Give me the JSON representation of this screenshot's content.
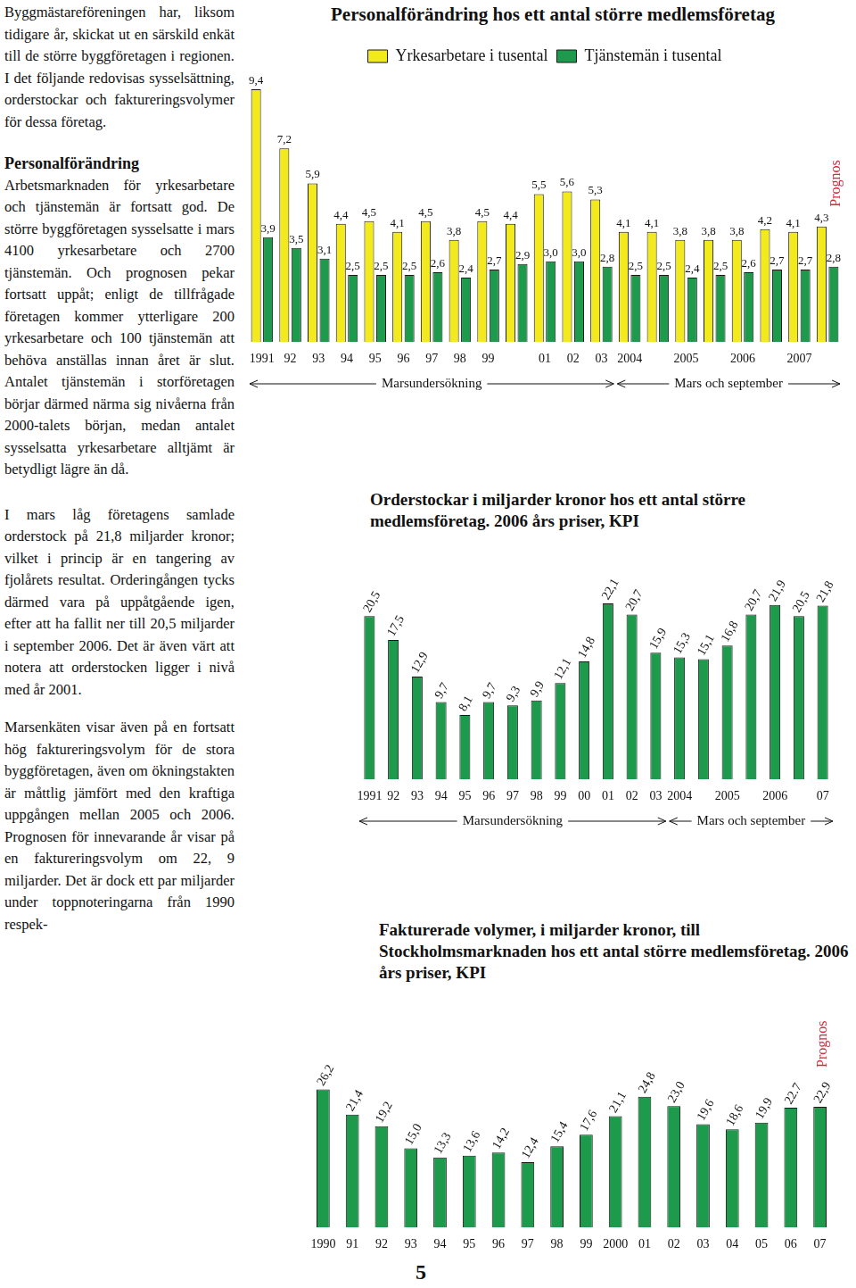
{
  "text": {
    "intro": "Byggmästareföreningen har, liksom tidigare år, skickat ut en särskild enkät till de större byggföretagen i regionen. I det följande redovisas sysselsättning, orderstockar och faktureringsvolymer för dessa företag.",
    "heading": "Personalförändring",
    "p1": "Arbetsmarknaden för yrkesarbetare och tjänstemän är fortsatt god. De större byggföretagen sysselsatte i mars 4100 yrkesarbetare och 2700 tjänstemän. Och prognosen pekar fortsatt uppåt; enligt de tillfrågade företagen kommer ytterligare 200 yrkesarbetare och 100 tjänstemän att behöva anställas innan året är slut. Antalet tjänstemän i storföretagen börjar därmed närma sig nivåerna från 2000-talets början, medan antalet sysselsatta yrkesarbetare alltjämt är betydligt lägre än då.",
    "p2": "I mars låg företagens samlade orderstock på 21,8 miljarder kronor; vilket i princip är en tangering av fjolårets resultat. Orderingången tycks därmed vara på uppåtgående igen, efter att ha fallit ner till 20,5 miljarder i september 2006. Det är även värt att notera att orderstocken ligger i nivå med år 2001.",
    "p3": "Marsenkäten visar även på en fortsatt hög faktureringsvolym för de stora byggföretagen, även om ökningstakten är måttlig jämfört med den kraftiga uppgången mellan 2005 och 2006. Prognosen för innevarande år visar på en faktureringsvolym om 22, 9 miljarder. Det är dock ett par miljarder under toppnoteringarna från 1990 respek-",
    "page_number": "5"
  },
  "chart_data": [
    {
      "type": "bar",
      "title": "Personalförändring hos ett antal större medlemsföretag",
      "categories": [
        "1991",
        "92",
        "93",
        "94",
        "95",
        "96",
        "97",
        "98",
        "99",
        null,
        "01",
        "02",
        "03",
        "2004",
        null,
        "2005",
        null,
        "2006",
        null,
        "2007",
        null
      ],
      "series": [
        {
          "name": "Yrkesarbetare i tusental",
          "color": "#f2ea1d",
          "values": [
            9.4,
            7.2,
            5.9,
            4.4,
            4.5,
            4.1,
            4.5,
            3.8,
            4.5,
            4.4,
            5.5,
            5.6,
            5.3,
            4.1,
            4.1,
            3.8,
            3.8,
            3.8,
            4.2,
            4.1,
            4.3
          ],
          "value_labels": [
            "9,4",
            "7,2",
            "5,9",
            "4,4",
            "4,5",
            "4,1",
            "4,5",
            "3,8",
            "4,5",
            "4,4",
            "5,5",
            "5,6",
            "5,3",
            "4,1",
            "4,1",
            "3,8",
            "3,8",
            "3,8",
            "4,2",
            "4,1",
            "4,3"
          ]
        },
        {
          "name": "Tjänstemän i tusental",
          "color": "#1d9a4b",
          "values": [
            3.9,
            3.5,
            3.1,
            2.5,
            2.5,
            2.5,
            2.6,
            2.4,
            2.7,
            2.9,
            3.0,
            3.0,
            2.8,
            2.5,
            2.5,
            2.4,
            2.5,
            2.6,
            2.7,
            2.7,
            2.8
          ],
          "value_labels": [
            "3,9",
            "3,5",
            "3,1",
            "2,5",
            "2,5",
            "2,5",
            "2,6",
            "2,4",
            "2,7",
            "2,9",
            "3,0",
            "3,0",
            "2,8",
            "2,5",
            "2,5",
            "2,4",
            "2,5",
            "2,6",
            "2,7",
            "2,7",
            "2,8"
          ]
        }
      ],
      "data_labels": true,
      "legend": "top",
      "tick_labels": "x",
      "grid": false,
      "annotations": [
        {
          "text": "Marsundersökning",
          "from": "1991",
          "to": "03"
        },
        {
          "text": "Mars och september",
          "from": "2004",
          "to": "2007"
        },
        {
          "text": "Prognos",
          "at": "2007"
        }
      ]
    },
    {
      "type": "bar",
      "title": "Orderstockar i miljarder kronor hos ett antal större medlemsföretag. 2006 års priser, KPI",
      "categories": [
        "1991",
        "92",
        "93",
        "94",
        "95",
        "96",
        "97",
        "98",
        "99",
        "00",
        "01",
        "02",
        "03",
        "2004",
        null,
        "2005",
        null,
        "2006",
        null,
        "07"
      ],
      "values": [
        20.5,
        17.5,
        12.9,
        9.7,
        8.1,
        9.7,
        9.3,
        9.9,
        12.1,
        14.8,
        22.1,
        20.7,
        15.9,
        15.3,
        15.1,
        16.8,
        20.7,
        21.9,
        20.5,
        21.8
      ],
      "value_labels": [
        "20,5",
        "17,5",
        "12,9",
        "9,7",
        "8,1",
        "9,7",
        "9,3",
        "9,9",
        "12,1",
        "14,8",
        "22,1",
        "20,7",
        "15,9",
        "15,3",
        "15,1",
        "16,8",
        "20,7",
        "21,9",
        "20,5",
        "21,8"
      ],
      "color": "#1d9a4b",
      "data_labels": true,
      "tick_labels": "x",
      "grid": false,
      "annotations": [
        {
          "text": "Marsundersökning",
          "from": "1991",
          "to": "03"
        },
        {
          "text": "Mars och september",
          "from": "2004",
          "to": "07"
        }
      ]
    },
    {
      "type": "bar",
      "title": "Fakturerade volymer, i miljarder kronor, till Stockholmsmarknaden hos ett antal större medlemsföretag. 2006 års priser, KPI",
      "categories": [
        "1990",
        "91",
        "92",
        "93",
        "94",
        "95",
        "96",
        "97",
        "98",
        "99",
        "2000",
        "01",
        "02",
        "03",
        "04",
        "05",
        "06",
        "07"
      ],
      "values": [
        26.2,
        21.4,
        19.2,
        15.0,
        13.3,
        13.6,
        14.2,
        12.4,
        15.4,
        17.6,
        21.1,
        24.8,
        23.0,
        19.6,
        18.6,
        19.9,
        22.7,
        22.9
      ],
      "value_labels": [
        "26,2",
        "21,4",
        "19,2",
        "15,0",
        "13,3",
        "13,6",
        "14,2",
        "12,4",
        "15,4",
        "17,6",
        "21,1",
        "24,8",
        "23,0",
        "19,6",
        "18,6",
        "19,9",
        "22.7",
        "22,9"
      ],
      "color": "#1d9a4b",
      "data_labels": true,
      "tick_labels": "x",
      "grid": false,
      "annotations": [
        {
          "text": "Prognos",
          "at": "07"
        }
      ]
    }
  ]
}
